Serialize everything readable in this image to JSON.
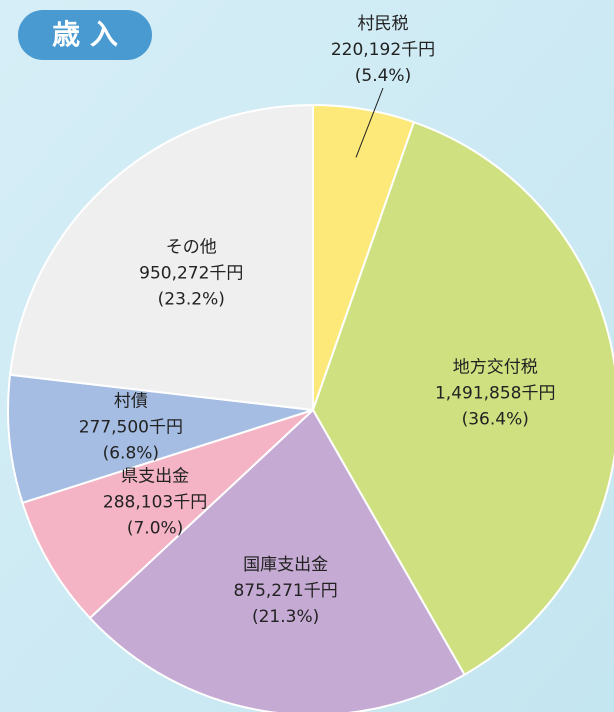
{
  "chart_data": {
    "type": "pie",
    "title": "歳 入",
    "categories": [
      "村民税",
      "地方交付税",
      "国庫支出金",
      "県支出金",
      "村債",
      "その他"
    ],
    "values": [
      220192,
      1491858,
      875271,
      288103,
      277500,
      950272
    ],
    "value_labels": [
      "220,192千円",
      "1,491,858千円",
      "875,271千円",
      "288,103千円",
      "277,500千円",
      "950,272千円"
    ],
    "percentages": [
      5.4,
      36.4,
      21.3,
      7.0,
      6.8,
      23.2
    ],
    "percentage_labels": [
      "(5.4%)",
      "(36.4%)",
      "(21.3%)",
      "(7.0%)",
      "(6.8%)",
      "(23.2%)"
    ],
    "colors": [
      "#fde97a",
      "#cfe080",
      "#c5aad3",
      "#f4b4c6",
      "#a6bde3",
      "#efefef"
    ]
  }
}
